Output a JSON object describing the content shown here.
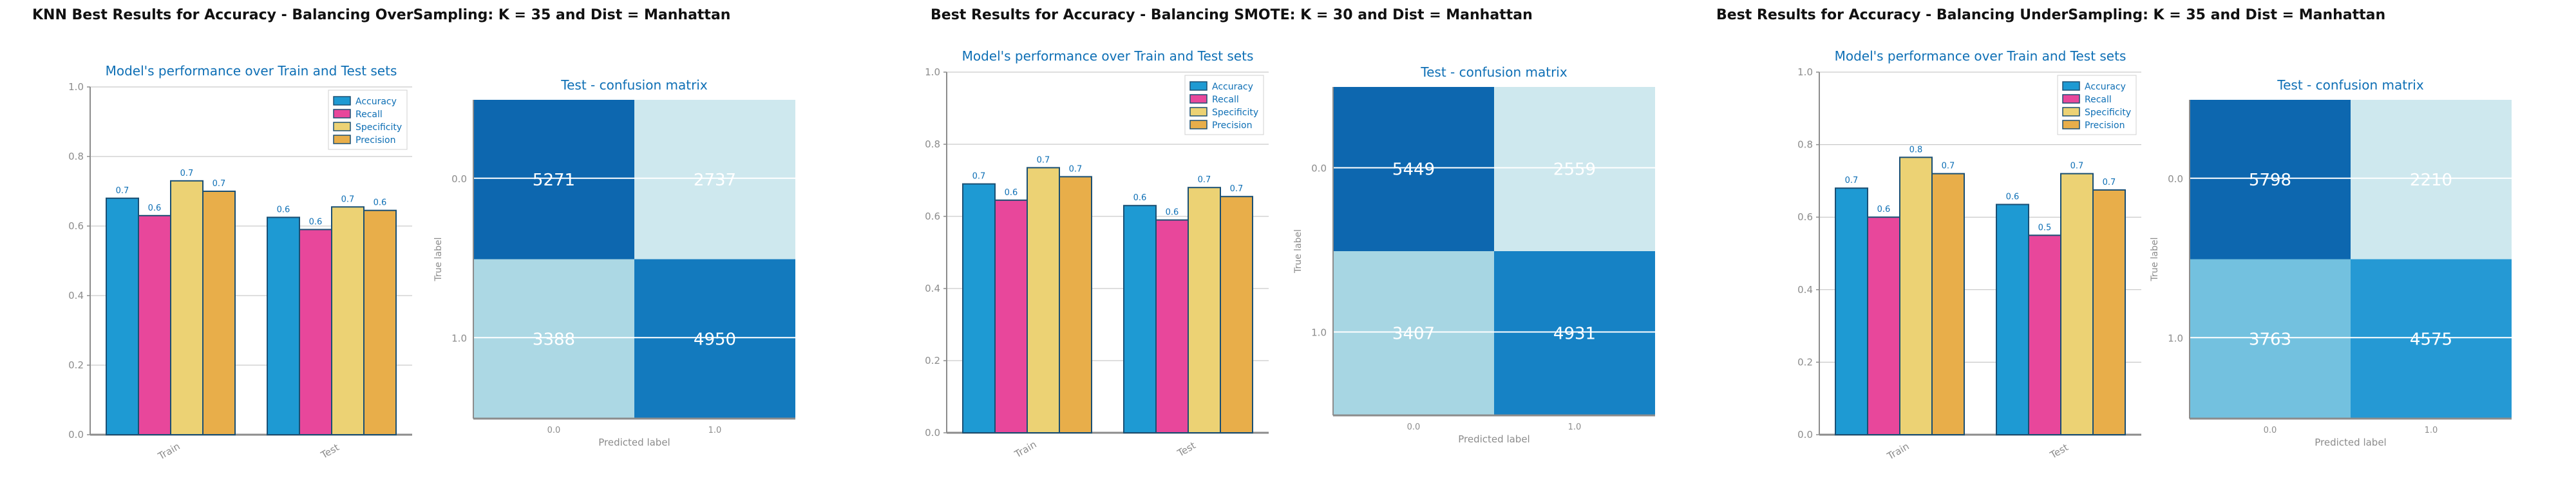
{
  "colors": {
    "accuracy": "#1E9AD3",
    "recall": "#E8479B",
    "specificity": "#ECD274",
    "precision": "#E8AE4A",
    "title_blue": "#0E6FB5",
    "axis_gray": "#8C8C8C",
    "bar_edge": "#1A4F73"
  },
  "panels": [
    {
      "title": "KNN Best Results for Accuracy - Balancing OverSampling: K = 35 and Dist = Manhattan",
      "chart_data": [
        {
          "type": "bar",
          "title": "Model's performance over Train and Test sets",
          "categories": [
            "Train",
            "Test"
          ],
          "series": [
            {
              "name": "Accuracy",
              "values": [
                0.68,
                0.625
              ],
              "labels": [
                "0.7",
                "0.6"
              ]
            },
            {
              "name": "Recall",
              "values": [
                0.63,
                0.59
              ],
              "labels": [
                "0.6",
                "0.6"
              ]
            },
            {
              "name": "Specificity",
              "values": [
                0.73,
                0.655
              ],
              "labels": [
                "0.7",
                "0.7"
              ]
            },
            {
              "name": "Precision",
              "values": [
                0.7,
                0.645
              ],
              "labels": [
                "0.7",
                "0.6"
              ]
            }
          ],
          "ylim": [
            0,
            1.0
          ],
          "yticks": [
            "0.0",
            "0.2",
            "0.4",
            "0.6",
            "0.8",
            "1.0"
          ],
          "legend": "top-right"
        },
        {
          "type": "heatmap",
          "title": "Test - confusion matrix",
          "xlabel": "Predicted label",
          "ylabel": "True label",
          "xticks": [
            "0.0",
            "1.0"
          ],
          "yticks": [
            "0.0",
            "1.0"
          ],
          "values": [
            [
              5271,
              2737
            ],
            [
              3388,
              4950
            ]
          ]
        }
      ]
    },
    {
      "title": "Best Results for Accuracy - Balancing SMOTE: K = 30 and Dist = Manhattan",
      "chart_data": [
        {
          "type": "bar",
          "title": "Model's performance over Train and Test sets",
          "categories": [
            "Train",
            "Test"
          ],
          "series": [
            {
              "name": "Accuracy",
              "values": [
                0.69,
                0.63
              ],
              "labels": [
                "0.7",
                "0.6"
              ]
            },
            {
              "name": "Recall",
              "values": [
                0.645,
                0.59
              ],
              "labels": [
                "0.6",
                "0.6"
              ]
            },
            {
              "name": "Specificity",
              "values": [
                0.735,
                0.68
              ],
              "labels": [
                "0.7",
                "0.7"
              ]
            },
            {
              "name": "Precision",
              "values": [
                0.71,
                0.655
              ],
              "labels": [
                "0.7",
                "0.7"
              ]
            }
          ],
          "ylim": [
            0,
            1.0
          ],
          "yticks": [
            "0.0",
            "0.2",
            "0.4",
            "0.6",
            "0.8",
            "1.0"
          ],
          "legend": "top-right"
        },
        {
          "type": "heatmap",
          "title": "Test - confusion matrix",
          "xlabel": "Predicted label",
          "ylabel": "True label",
          "xticks": [
            "0.0",
            "1.0"
          ],
          "yticks": [
            "0.0",
            "1.0"
          ],
          "values": [
            [
              5449,
              2559
            ],
            [
              3407,
              4931
            ]
          ]
        }
      ]
    },
    {
      "title": "Best Results for Accuracy - Balancing UnderSampling: K = 35 and Dist = Manhattan",
      "chart_data": [
        {
          "type": "bar",
          "title": "Model's performance over Train and Test sets",
          "categories": [
            "Train",
            "Test"
          ],
          "series": [
            {
              "name": "Accuracy",
              "values": [
                0.68,
                0.635
              ],
              "labels": [
                "0.7",
                "0.6"
              ]
            },
            {
              "name": "Recall",
              "values": [
                0.6,
                0.55
              ],
              "labels": [
                "0.6",
                "0.5"
              ]
            },
            {
              "name": "Specificity",
              "values": [
                0.765,
                0.72
              ],
              "labels": [
                "0.8",
                "0.7"
              ]
            },
            {
              "name": "Precision",
              "values": [
                0.72,
                0.675
              ],
              "labels": [
                "0.7",
                "0.7"
              ]
            }
          ],
          "ylim": [
            0,
            1.0
          ],
          "yticks": [
            "0.0",
            "0.2",
            "0.4",
            "0.6",
            "0.8",
            "1.0"
          ],
          "legend": "top-right"
        },
        {
          "type": "heatmap",
          "title": "Test - confusion matrix",
          "xlabel": "Predicted label",
          "ylabel": "True label",
          "xticks": [
            "0.0",
            "1.0"
          ],
          "yticks": [
            "0.0",
            "1.0"
          ],
          "values": [
            [
              5798,
              2210
            ],
            [
              3763,
              4575
            ]
          ]
        }
      ]
    }
  ]
}
